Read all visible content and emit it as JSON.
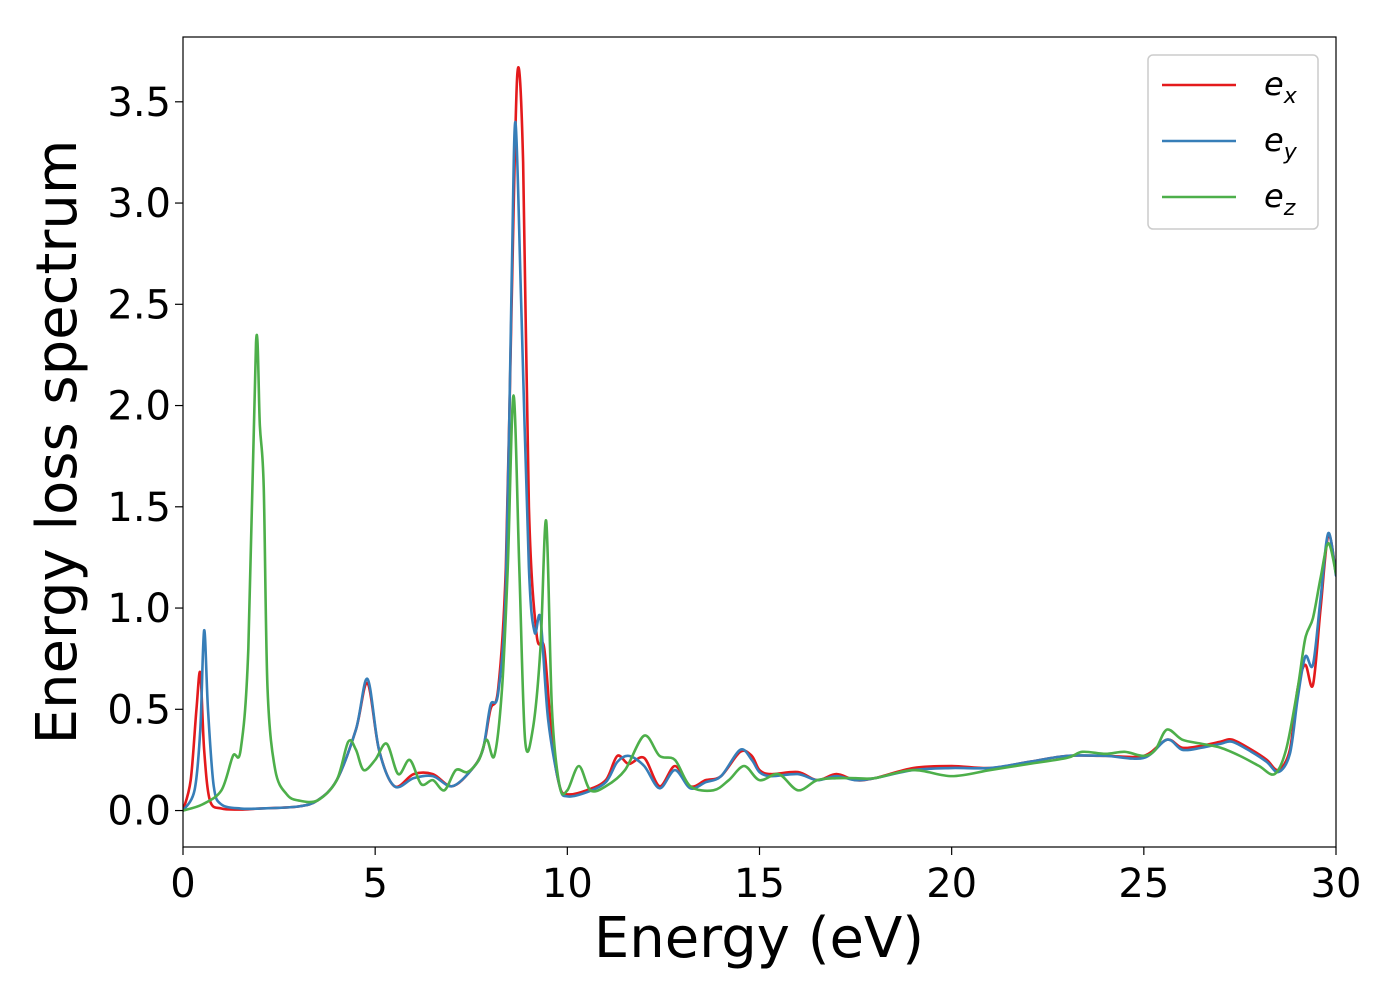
{
  "chart_data": {
    "type": "line",
    "xlabel": "Energy (eV)",
    "ylabel": "Energy loss spectrum",
    "xlim": [
      0,
      30
    ],
    "ylim": [
      -0.18,
      3.82
    ],
    "xticks": [
      0,
      5,
      10,
      15,
      20,
      25,
      30
    ],
    "xtick_labels": [
      "0",
      "5",
      "10",
      "15",
      "20",
      "25",
      "30"
    ],
    "yticks": [
      0.0,
      0.5,
      1.0,
      1.5,
      2.0,
      2.5,
      3.0,
      3.5
    ],
    "ytick_labels": [
      "0.0",
      "0.5",
      "1.0",
      "1.5",
      "2.0",
      "2.5",
      "3.0",
      "3.5"
    ],
    "grid": false,
    "legend": {
      "placement": "top-right"
    },
    "series": [
      {
        "name": "e",
        "subscript": "x",
        "color": "#e41a1c",
        "x": [
          0,
          0.2,
          0.35,
          0.45,
          0.55,
          0.7,
          1.0,
          1.5,
          2.0,
          3.0,
          3.5,
          4.0,
          4.5,
          4.8,
          5.1,
          5.5,
          6.0,
          6.5,
          7.0,
          7.5,
          7.8,
          8.0,
          8.2,
          8.4,
          8.55,
          8.7,
          8.85,
          9.0,
          9.2,
          9.4,
          9.6,
          9.8,
          10.0,
          10.5,
          11.0,
          11.3,
          11.6,
          12.0,
          12.4,
          12.8,
          13.2,
          13.6,
          14.0,
          14.5,
          14.8,
          15.0,
          15.3,
          16.0,
          16.5,
          17.0,
          17.5,
          18.0,
          19.0,
          20.0,
          21.0,
          22.0,
          23.0,
          24.0,
          25.0,
          25.6,
          26.0,
          26.5,
          27.0,
          27.3,
          27.8,
          28.2,
          28.5,
          28.8,
          29.0,
          29.2,
          29.4,
          29.6,
          29.8,
          30.0
        ],
        "y": [
          0.0,
          0.15,
          0.5,
          0.68,
          0.3,
          0.05,
          0.01,
          0.005,
          0.01,
          0.02,
          0.05,
          0.15,
          0.4,
          0.63,
          0.3,
          0.12,
          0.18,
          0.18,
          0.12,
          0.2,
          0.3,
          0.5,
          0.6,
          1.2,
          2.5,
          3.64,
          3.2,
          1.5,
          0.87,
          0.8,
          0.35,
          0.12,
          0.08,
          0.1,
          0.15,
          0.27,
          0.23,
          0.26,
          0.12,
          0.22,
          0.12,
          0.15,
          0.17,
          0.29,
          0.27,
          0.2,
          0.18,
          0.19,
          0.15,
          0.18,
          0.15,
          0.16,
          0.21,
          0.22,
          0.21,
          0.24,
          0.27,
          0.27,
          0.27,
          0.35,
          0.31,
          0.32,
          0.34,
          0.35,
          0.3,
          0.25,
          0.2,
          0.3,
          0.6,
          0.72,
          0.62,
          1.0,
          1.36,
          1.17
        ]
      },
      {
        "name": "e",
        "subscript": "y",
        "color": "#377eb8",
        "x": [
          0,
          0.3,
          0.45,
          0.55,
          0.65,
          0.8,
          1.0,
          1.5,
          2.0,
          3.0,
          3.5,
          4.0,
          4.5,
          4.8,
          5.1,
          5.5,
          6.0,
          6.5,
          7.0,
          7.5,
          7.8,
          8.0,
          8.2,
          8.4,
          8.55,
          8.65,
          8.8,
          9.0,
          9.15,
          9.3,
          9.5,
          9.8,
          10.0,
          10.5,
          11.0,
          11.3,
          11.6,
          12.0,
          12.4,
          12.8,
          13.2,
          13.6,
          14.0,
          14.5,
          14.8,
          15.0,
          15.3,
          16.0,
          16.5,
          17.0,
          17.5,
          18.0,
          19.0,
          20.0,
          21.0,
          22.0,
          23.0,
          24.0,
          25.0,
          25.6,
          26.0,
          26.5,
          27.0,
          27.3,
          27.8,
          28.2,
          28.5,
          28.8,
          29.0,
          29.2,
          29.4,
          29.6,
          29.8,
          30.0
        ],
        "y": [
          0.0,
          0.1,
          0.4,
          0.89,
          0.5,
          0.12,
          0.03,
          0.01,
          0.01,
          0.02,
          0.05,
          0.15,
          0.4,
          0.65,
          0.3,
          0.12,
          0.16,
          0.17,
          0.12,
          0.2,
          0.3,
          0.52,
          0.58,
          1.1,
          2.6,
          3.4,
          2.5,
          1.2,
          0.88,
          0.95,
          0.45,
          0.12,
          0.07,
          0.09,
          0.14,
          0.24,
          0.27,
          0.22,
          0.11,
          0.2,
          0.11,
          0.14,
          0.17,
          0.3,
          0.25,
          0.19,
          0.17,
          0.18,
          0.15,
          0.17,
          0.15,
          0.16,
          0.2,
          0.21,
          0.21,
          0.24,
          0.27,
          0.27,
          0.26,
          0.35,
          0.3,
          0.31,
          0.33,
          0.34,
          0.29,
          0.24,
          0.19,
          0.28,
          0.55,
          0.76,
          0.72,
          1.05,
          1.37,
          1.16
        ]
      },
      {
        "name": "e",
        "subscript": "z",
        "color": "#4daf4a",
        "x": [
          0,
          0.5,
          1.0,
          1.3,
          1.5,
          1.7,
          1.9,
          2.0,
          2.1,
          2.2,
          2.4,
          2.7,
          3.0,
          3.5,
          4.0,
          4.3,
          4.5,
          4.7,
          5.0,
          5.3,
          5.6,
          5.9,
          6.2,
          6.5,
          6.8,
          7.1,
          7.4,
          7.7,
          7.9,
          8.1,
          8.3,
          8.45,
          8.6,
          8.75,
          8.9,
          9.1,
          9.3,
          9.45,
          9.6,
          9.8,
          10.0,
          10.3,
          10.6,
          11.0,
          11.5,
          12.0,
          12.4,
          12.8,
          13.2,
          13.8,
          14.2,
          14.6,
          15.0,
          15.5,
          16.0,
          16.5,
          17.0,
          17.5,
          18.0,
          19.0,
          20.0,
          21.0,
          22.0,
          23.0,
          23.4,
          24.0,
          24.5,
          25.0,
          25.3,
          25.6,
          26.0,
          26.5,
          27.0,
          27.5,
          28.0,
          28.4,
          28.7,
          29.0,
          29.2,
          29.4,
          29.6,
          29.8,
          30.0
        ],
        "y": [
          0.0,
          0.03,
          0.1,
          0.27,
          0.3,
          0.8,
          2.31,
          1.9,
          1.6,
          0.6,
          0.2,
          0.08,
          0.05,
          0.05,
          0.15,
          0.34,
          0.3,
          0.2,
          0.25,
          0.33,
          0.18,
          0.25,
          0.13,
          0.15,
          0.1,
          0.2,
          0.19,
          0.25,
          0.35,
          0.27,
          0.6,
          1.2,
          2.05,
          1.2,
          0.35,
          0.4,
          0.8,
          1.43,
          0.5,
          0.12,
          0.1,
          0.22,
          0.1,
          0.12,
          0.2,
          0.37,
          0.27,
          0.25,
          0.12,
          0.1,
          0.15,
          0.22,
          0.15,
          0.18,
          0.1,
          0.15,
          0.16,
          0.16,
          0.16,
          0.2,
          0.17,
          0.2,
          0.23,
          0.26,
          0.29,
          0.28,
          0.29,
          0.27,
          0.3,
          0.4,
          0.35,
          0.33,
          0.31,
          0.27,
          0.22,
          0.18,
          0.3,
          0.6,
          0.85,
          0.95,
          1.15,
          1.32,
          1.17
        ]
      }
    ]
  }
}
